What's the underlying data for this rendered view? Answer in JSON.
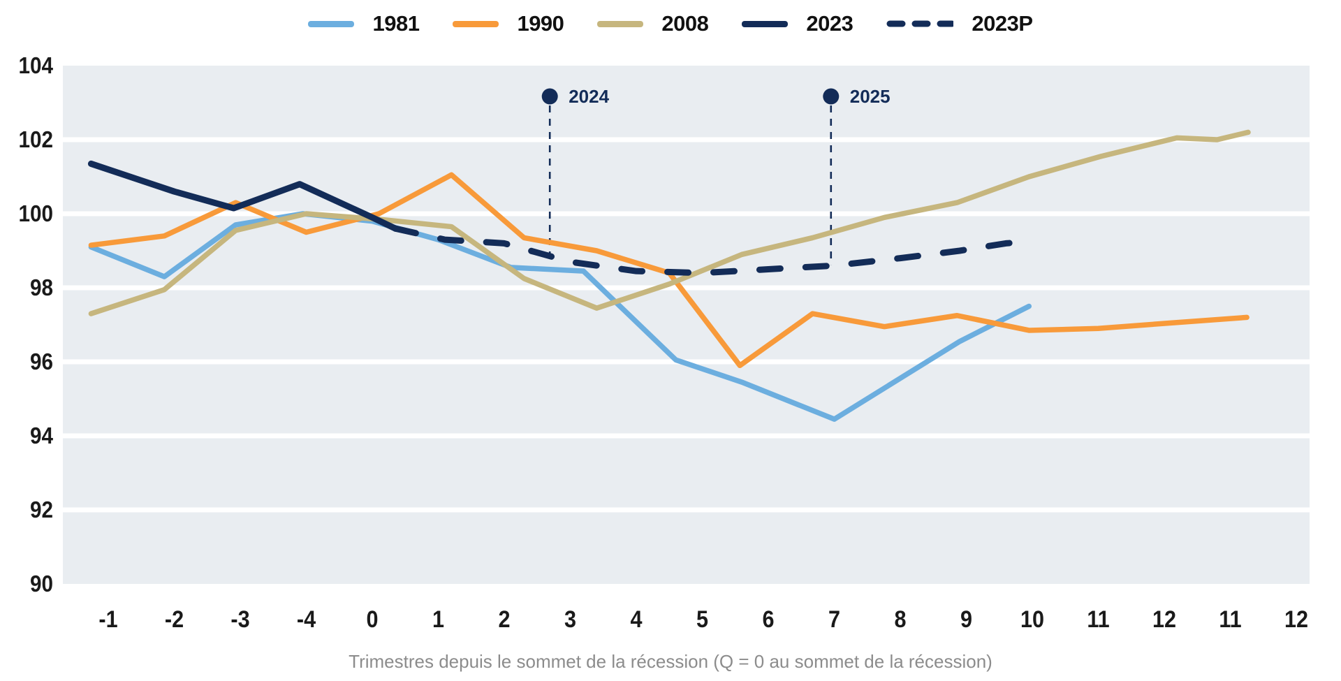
{
  "legend": {
    "items": [
      {
        "label": "1981",
        "color": "#6CAEDF",
        "style": "solid"
      },
      {
        "label": "1990",
        "color": "#F89A3A",
        "style": "solid"
      },
      {
        "label": "2008",
        "color": "#C6B67E",
        "style": "solid"
      },
      {
        "label": "2023",
        "color": "#132C58",
        "style": "solid"
      },
      {
        "label": "2023P",
        "color": "#132C58",
        "style": "dashed"
      }
    ]
  },
  "x_axis": {
    "title": "Trimestres depuis le sommet de la récession (Q = 0 au sommet de la récession)",
    "tick_labels": [
      "-1",
      "-2",
      "-3",
      "-4",
      "0",
      "1",
      "2",
      "3",
      "4",
      "5",
      "6",
      "7",
      "8",
      "9",
      "10",
      "11",
      "12",
      "11",
      "12"
    ]
  },
  "y_axis": {
    "ticks": [
      104,
      102,
      100,
      98,
      96,
      94,
      92,
      90
    ],
    "min": 90,
    "max": 104
  },
  "annotations": [
    {
      "label": "2024",
      "x_slot": 6.69,
      "dot_value": 103.17,
      "line_end_value": 98.85
    },
    {
      "label": "2025",
      "x_slot": 10.95,
      "dot_value": 103.17,
      "line_end_value": 98.62
    }
  ],
  "chart_data": {
    "type": "line",
    "x_unit": "quarter-slot index aligned to x_axis.tick_labels (0 = first tick '-1', may be fractional)",
    "xlabel": "Trimestres depuis le sommet de la récession (Q = 0 au sommet de la récession)",
    "ylabel": "",
    "ylim": [
      90,
      104
    ],
    "grid": "horizontal-white-on-band",
    "legend_position": "top-center",
    "series": [
      {
        "name": "1981",
        "color": "#6CAEDF",
        "dashed": false,
        "points": [
          [
            -0.26,
            99.1
          ],
          [
            0.85,
            98.3
          ],
          [
            1.93,
            99.7
          ],
          [
            2.95,
            100.0
          ],
          [
            4.0,
            99.8
          ],
          [
            5.0,
            99.3
          ],
          [
            6.1,
            98.55
          ],
          [
            7.2,
            98.45
          ],
          [
            8.6,
            96.05
          ],
          [
            9.6,
            95.45
          ],
          [
            11.0,
            94.45
          ],
          [
            12.9,
            96.55
          ],
          [
            13.95,
            97.5
          ]
        ]
      },
      {
        "name": "1990",
        "color": "#F89A3A",
        "dashed": false,
        "points": [
          [
            -0.26,
            99.15
          ],
          [
            0.85,
            99.4
          ],
          [
            1.93,
            100.3
          ],
          [
            3.0,
            99.5
          ],
          [
            4.1,
            100.0
          ],
          [
            5.2,
            101.05
          ],
          [
            6.3,
            99.35
          ],
          [
            7.4,
            99.0
          ],
          [
            8.5,
            98.4
          ],
          [
            9.57,
            95.9
          ],
          [
            10.67,
            97.3
          ],
          [
            11.76,
            96.95
          ],
          [
            12.86,
            97.25
          ],
          [
            13.95,
            96.85
          ],
          [
            15.0,
            96.9
          ],
          [
            16.1,
            97.05
          ],
          [
            17.25,
            97.2
          ]
        ]
      },
      {
        "name": "2008",
        "color": "#C6B67E",
        "dashed": false,
        "points": [
          [
            -0.26,
            97.3
          ],
          [
            0.85,
            97.95
          ],
          [
            1.93,
            99.55
          ],
          [
            3.0,
            100.0
          ],
          [
            4.1,
            99.85
          ],
          [
            5.2,
            99.65
          ],
          [
            6.3,
            98.25
          ],
          [
            7.4,
            97.45
          ],
          [
            8.5,
            98.1
          ],
          [
            9.6,
            98.9
          ],
          [
            10.67,
            99.35
          ],
          [
            11.76,
            99.9
          ],
          [
            12.86,
            100.3
          ],
          [
            13.95,
            101.0
          ],
          [
            15.04,
            101.55
          ],
          [
            16.19,
            102.05
          ],
          [
            16.8,
            102.0
          ],
          [
            17.27,
            102.2
          ]
        ]
      },
      {
        "name": "2023",
        "color": "#132C58",
        "dashed": false,
        "points": [
          [
            -0.26,
            101.35
          ],
          [
            1.0,
            100.6
          ],
          [
            1.9,
            100.15
          ],
          [
            2.9,
            100.8
          ],
          [
            4.0,
            99.9
          ],
          [
            4.35,
            99.6
          ]
        ]
      },
      {
        "name": "2023P",
        "color": "#132C58",
        "dashed": true,
        "points": [
          [
            4.35,
            99.6
          ],
          [
            5.1,
            99.3
          ],
          [
            6.0,
            99.2
          ],
          [
            7.0,
            98.7
          ],
          [
            8.0,
            98.45
          ],
          [
            9.0,
            98.4
          ],
          [
            10.0,
            98.5
          ],
          [
            11.0,
            98.6
          ],
          [
            12.0,
            98.8
          ],
          [
            12.9,
            99.0
          ],
          [
            13.6,
            99.2
          ],
          [
            14.0,
            99.25
          ]
        ]
      }
    ]
  },
  "colors": {
    "plot_background": "#E9EDF1",
    "gridline": "#FFFFFF",
    "axis_text": "#1A1A1A",
    "title_text": "#8C8C8C",
    "annotation": "#132C58"
  }
}
